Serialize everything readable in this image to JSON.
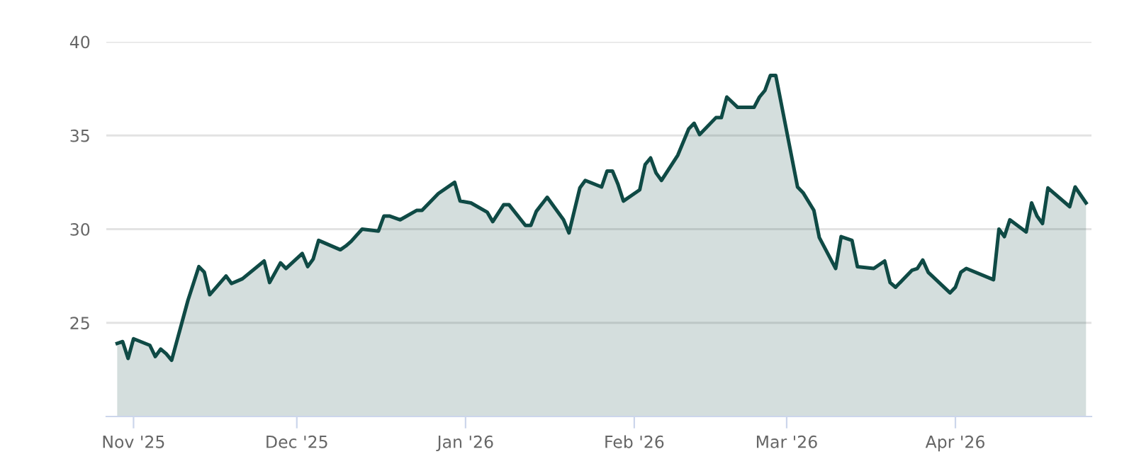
{
  "chart_data": {
    "type": "area",
    "x": [
      "2025-10-29",
      "2025-10-30",
      "2025-10-31",
      "2025-11-01",
      "2025-11-04",
      "2025-11-05",
      "2025-11-06",
      "2025-11-07",
      "2025-11-08",
      "2025-11-11",
      "2025-11-13",
      "2025-11-14",
      "2025-11-15",
      "2025-11-18",
      "2025-11-19",
      "2025-11-21",
      "2025-11-25",
      "2025-11-26",
      "2025-11-28",
      "2025-11-29",
      "2025-12-02",
      "2025-12-03",
      "2025-12-04",
      "2025-12-05",
      "2025-12-09",
      "2025-12-10",
      "2025-12-11",
      "2025-12-13",
      "2025-12-16",
      "2025-12-17",
      "2025-12-18",
      "2025-12-20",
      "2025-12-23",
      "2025-12-24",
      "2025-12-27",
      "2025-12-30",
      "2025-12-31",
      "2026-01-02",
      "2026-01-05",
      "2026-01-06",
      "2026-01-08",
      "2026-01-09",
      "2026-01-12",
      "2026-01-13",
      "2026-01-14",
      "2026-01-16",
      "2026-01-19",
      "2026-01-20",
      "2026-01-22",
      "2026-01-23",
      "2026-01-26",
      "2026-01-27",
      "2026-01-28",
      "2026-01-29",
      "2026-01-30",
      "2026-02-02",
      "2026-02-03",
      "2026-02-04",
      "2026-02-05",
      "2026-02-06",
      "2026-02-09",
      "2026-02-11",
      "2026-02-12",
      "2026-02-13",
      "2026-02-16",
      "2026-02-17",
      "2026-02-18",
      "2026-02-20",
      "2026-02-23",
      "2026-02-24",
      "2026-02-25",
      "2026-02-26",
      "2026-02-27",
      "2026-03-03",
      "2026-03-04",
      "2026-03-06",
      "2026-03-07",
      "2026-03-10",
      "2026-03-11",
      "2026-03-13",
      "2026-03-14",
      "2026-03-17",
      "2026-03-19",
      "2026-03-20",
      "2026-03-21",
      "2026-03-24",
      "2026-03-25",
      "2026-03-26",
      "2026-03-27",
      "2026-03-31",
      "2026-04-01",
      "2026-04-02",
      "2026-04-03",
      "2026-04-08",
      "2026-04-09",
      "2026-04-10",
      "2026-04-11",
      "2026-04-14",
      "2026-04-15",
      "2026-04-16",
      "2026-04-17",
      "2026-04-18",
      "2026-04-22",
      "2026-04-23",
      "2026-04-25"
    ],
    "values": [
      23.9,
      24.0,
      23.1,
      24.15,
      23.8,
      23.2,
      23.6,
      23.35,
      23.0,
      26.2,
      28.0,
      27.7,
      26.5,
      27.5,
      27.1,
      27.35,
      28.3,
      27.15,
      28.2,
      27.9,
      28.7,
      28.0,
      28.4,
      29.4,
      28.9,
      29.1,
      29.35,
      30.0,
      29.9,
      30.7,
      30.7,
      30.5,
      31.0,
      31.0,
      31.9,
      32.5,
      31.5,
      31.4,
      30.9,
      30.4,
      31.3,
      31.3,
      30.2,
      30.2,
      30.95,
      31.7,
      30.5,
      29.8,
      32.2,
      32.6,
      32.25,
      33.1,
      33.1,
      32.4,
      31.5,
      32.1,
      33.45,
      33.8,
      33.0,
      32.6,
      33.95,
      35.35,
      35.65,
      35.05,
      35.95,
      35.95,
      37.05,
      36.5,
      36.5,
      37.05,
      37.4,
      38.2,
      38.2,
      32.25,
      31.95,
      31.0,
      29.55,
      27.9,
      29.6,
      29.4,
      28.0,
      27.9,
      28.3,
      27.15,
      26.9,
      27.8,
      27.9,
      28.35,
      27.7,
      26.6,
      26.9,
      27.7,
      27.9,
      27.3,
      30.0,
      29.6,
      30.5,
      29.85,
      31.4,
      30.7,
      30.3,
      32.2,
      31.2,
      32.25,
      31.4
    ],
    "color": "#0f4a45",
    "xlim": [
      "2025-10-27",
      "2026-04-26"
    ],
    "xticks": [
      {
        "value": "2025-11-01",
        "label": "Nov '25"
      },
      {
        "value": "2025-12-01",
        "label": "Dec '25"
      },
      {
        "value": "2026-01-01",
        "label": "Jan '26"
      },
      {
        "value": "2026-02-01",
        "label": "Feb '26"
      },
      {
        "value": "2026-03-01",
        "label": "Mar '26"
      },
      {
        "value": "2026-04-01",
        "label": "Apr '26"
      }
    ],
    "ylim": [
      20,
      40
    ],
    "yticks": [
      25,
      30,
      35,
      40
    ],
    "grid": "y"
  }
}
